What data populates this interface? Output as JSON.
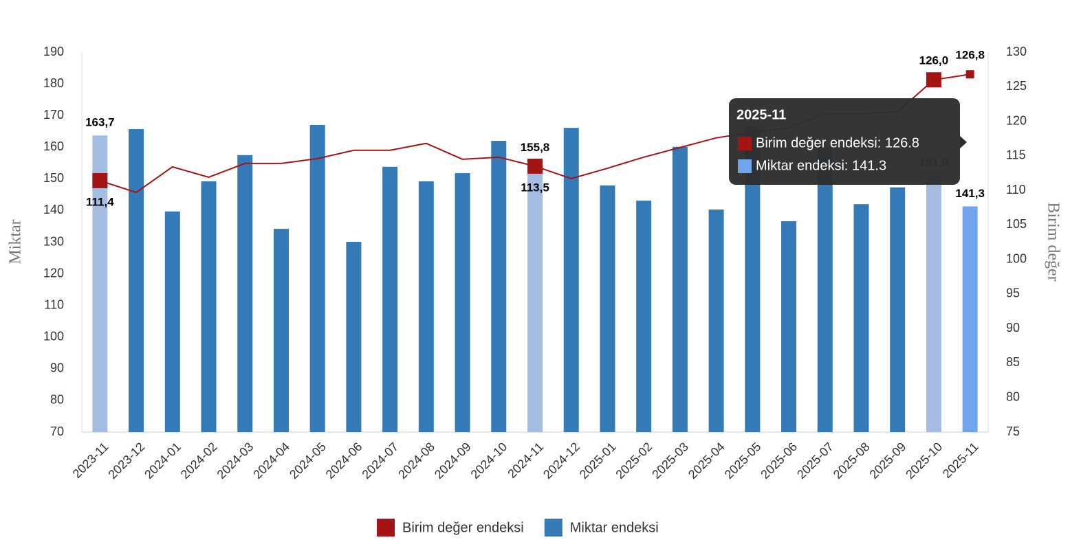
{
  "chart_data": {
    "type": "bar-line",
    "categories": [
      "2023-11",
      "2023-12",
      "2024-01",
      "2024-02",
      "2024-03",
      "2024-04",
      "2024-05",
      "2024-06",
      "2024-07",
      "2024-08",
      "2024-09",
      "2024-10",
      "2024-11",
      "2024-12",
      "2025-01",
      "2025-02",
      "2025-03",
      "2025-04",
      "2025-05",
      "2025-06",
      "2025-07",
      "2025-08",
      "2025-09",
      "2025-10",
      "2025-11"
    ],
    "y_label": "Miktar",
    "y2_label": "Birim değer",
    "ylim": [
      70,
      190
    ],
    "yticks": [
      70,
      80,
      90,
      100,
      110,
      120,
      130,
      140,
      150,
      160,
      170,
      180,
      190
    ],
    "y2lim": [
      75,
      130
    ],
    "y2ticks": [
      75,
      80,
      85,
      90,
      95,
      100,
      105,
      110,
      115,
      120,
      125,
      130
    ],
    "series": [
      {
        "name": "Birim değer endeksi",
        "type": "line",
        "axis": "y2",
        "color": "#a31515",
        "values": [
          111.4,
          109.7,
          113.4,
          111.9,
          113.9,
          113.9,
          114.6,
          115.8,
          115.8,
          116.8,
          114.5,
          114.8,
          113.5,
          111.7,
          113.2,
          114.8,
          116.2,
          117.6,
          118.4,
          119.0,
          121.1,
          121.1,
          121.4,
          126.0,
          126.8
        ],
        "value_labels": [
          "111,4",
          null,
          null,
          null,
          null,
          null,
          null,
          null,
          null,
          null,
          null,
          null,
          "113,5",
          null,
          null,
          null,
          null,
          null,
          null,
          null,
          null,
          null,
          null,
          "126,0",
          "126,8"
        ]
      },
      {
        "name": "Miktar endeksi",
        "type": "bar",
        "color": "#337ab7",
        "colors": [
          "#a6bde3",
          "#337ab7",
          "#337ab7",
          "#337ab7",
          "#337ab7",
          "#337ab7",
          "#337ab7",
          "#337ab7",
          "#337ab7",
          "#337ab7",
          "#337ab7",
          "#337ab7",
          "#a6bde3",
          "#337ab7",
          "#337ab7",
          "#337ab7",
          "#337ab7",
          "#337ab7",
          "#337ab7",
          "#337ab7",
          "#337ab7",
          "#337ab7",
          "#337ab7",
          "#a6bde3",
          "#72a4ee"
        ],
        "values": [
          163.7,
          165.7,
          139.7,
          149.2,
          157.5,
          134.2,
          167.0,
          130.1,
          153.8,
          149.2,
          151.8,
          162.0,
          155.8,
          166.1,
          147.9,
          143.1,
          160.1,
          140.3,
          166.4,
          136.6,
          160.0,
          142.0,
          147.3,
          151.0,
          141.3
        ],
        "value_labels": [
          "163,7",
          null,
          null,
          null,
          null,
          null,
          null,
          null,
          null,
          null,
          null,
          null,
          "155,8",
          null,
          null,
          null,
          null,
          null,
          null,
          null,
          null,
          null,
          null,
          "151,0",
          "141,3"
        ]
      }
    ],
    "tooltip": {
      "title": "2025-11",
      "items": [
        "Birim değer endeksi: 126.8",
        "Miktar endeksi: 141.3"
      ]
    }
  }
}
